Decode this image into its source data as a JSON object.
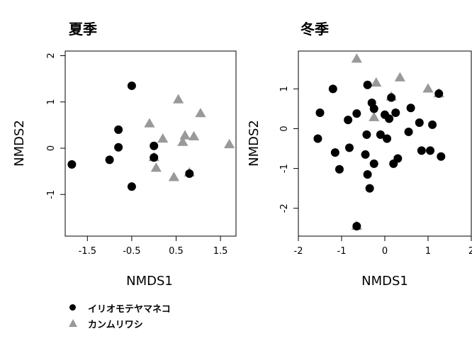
{
  "colors": {
    "cat": "#000000",
    "eagle": "#999999",
    "axis": "#000000"
  },
  "legend": {
    "items": [
      {
        "label": "イリオモテヤマネコ",
        "marker": "circle",
        "color": "#000000"
      },
      {
        "label": "カンムリワシ",
        "marker": "triangle",
        "color": "#999999"
      }
    ]
  },
  "chart_data": [
    {
      "type": "scatter",
      "title": "夏季",
      "xlabel": "NMDS1",
      "ylabel": "NMDS2",
      "xlim": [
        -2.0,
        1.85
      ],
      "ylim": [
        -1.9,
        2.1
      ],
      "xticks": [
        -1.5,
        -0.5,
        0.5,
        1.5
      ],
      "yticks": [
        -1,
        0,
        1,
        2
      ],
      "xtick_labels": [
        "-1.5",
        "-0.5",
        "0.5",
        "1.5"
      ],
      "ytick_labels": [
        "-1",
        "0",
        "1",
        "2"
      ],
      "series": [
        {
          "marker": "circle",
          "color": "#000000",
          "points": [
            [
              -1.85,
              -0.35
            ],
            [
              -1.0,
              -0.25
            ],
            [
              -0.8,
              0.4
            ],
            [
              -0.8,
              0.02
            ],
            [
              -0.5,
              1.35
            ],
            [
              -0.5,
              -0.83
            ],
            [
              0.0,
              0.05
            ],
            [
              0.0,
              -0.2
            ],
            [
              0.8,
              -0.55
            ]
          ]
        },
        {
          "marker": "triangle",
          "color": "#999999",
          "points": [
            [
              -0.1,
              0.53
            ],
            [
              0.0,
              -0.2
            ],
            [
              0.05,
              -0.43
            ],
            [
              0.2,
              0.2
            ],
            [
              0.45,
              -0.63
            ],
            [
              0.55,
              1.05
            ],
            [
              0.65,
              0.13
            ],
            [
              0.7,
              0.27
            ],
            [
              0.8,
              -0.53
            ],
            [
              0.9,
              0.25
            ],
            [
              1.05,
              0.75
            ],
            [
              1.7,
              0.08
            ]
          ]
        }
      ]
    },
    {
      "type": "scatter",
      "title": "冬季",
      "xlabel": "NMDS1",
      "ylabel": "NMDS2",
      "xlim": [
        -2.0,
        2.0
      ],
      "ylim": [
        -2.7,
        1.95
      ],
      "xticks": [
        -2,
        -1,
        0,
        1,
        2
      ],
      "yticks": [
        -2,
        -1,
        0,
        1
      ],
      "xtick_labels": [
        "-2",
        "-1",
        "0",
        "1",
        "2"
      ],
      "ytick_labels": [
        "-2",
        "-1",
        "0",
        "1"
      ],
      "series": [
        {
          "marker": "circle",
          "color": "#000000",
          "points": [
            [
              -1.55,
              -0.25
            ],
            [
              -1.5,
              0.4
            ],
            [
              -1.2,
              1.0
            ],
            [
              -1.15,
              -0.6
            ],
            [
              -1.05,
              -1.02
            ],
            [
              -0.85,
              0.22
            ],
            [
              -0.82,
              -0.48
            ],
            [
              -0.65,
              0.38
            ],
            [
              -0.65,
              -2.45
            ],
            [
              -0.45,
              -0.65
            ],
            [
              -0.42,
              -0.15
            ],
            [
              -0.4,
              1.1
            ],
            [
              -0.4,
              -1.15
            ],
            [
              -0.35,
              -1.5
            ],
            [
              -0.3,
              0.65
            ],
            [
              -0.25,
              0.5
            ],
            [
              -0.25,
              -0.88
            ],
            [
              -0.1,
              -0.15
            ],
            [
              0.0,
              0.35
            ],
            [
              0.05,
              -0.25
            ],
            [
              0.1,
              0.25
            ],
            [
              0.15,
              0.78
            ],
            [
              0.2,
              -0.88
            ],
            [
              0.25,
              0.4
            ],
            [
              0.3,
              -0.75
            ],
            [
              0.55,
              -0.08
            ],
            [
              0.6,
              0.52
            ],
            [
              0.8,
              0.15
            ],
            [
              0.85,
              -0.55
            ],
            [
              1.05,
              -0.55
            ],
            [
              1.1,
              0.1
            ],
            [
              1.25,
              0.88
            ],
            [
              1.3,
              -0.7
            ]
          ]
        },
        {
          "marker": "triangle",
          "color": "#999999",
          "points": [
            [
              -0.65,
              1.75
            ],
            [
              -0.65,
              -2.45
            ],
            [
              -0.25,
              0.28
            ],
            [
              -0.2,
              1.15
            ],
            [
              0.15,
              0.8
            ],
            [
              0.35,
              1.28
            ],
            [
              1.0,
              1.0
            ],
            [
              1.25,
              0.88
            ]
          ]
        }
      ]
    }
  ]
}
